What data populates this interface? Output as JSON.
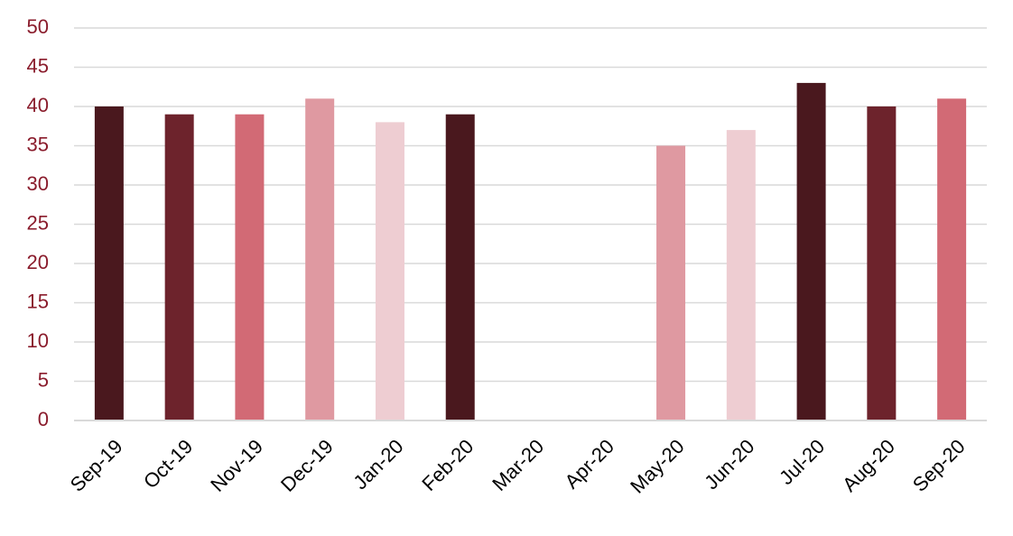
{
  "chart_data": {
    "type": "bar",
    "categories": [
      "Sep-19",
      "Oct-19",
      "Nov-19",
      "Dec-19",
      "Jan-20",
      "Feb-20",
      "Mar-20",
      "Apr-20",
      "May-20",
      "Jun-20",
      "Jul-20",
      "Aug-20",
      "Sep-20"
    ],
    "values": [
      40,
      39,
      39,
      41,
      38,
      39,
      null,
      null,
      35,
      37,
      43,
      40,
      41
    ],
    "colors": [
      "#4a181e",
      "#6d232c",
      "#d26a75",
      "#df99a1",
      "#eecdd2",
      "#4a181e",
      "#6d232c",
      "#d26a75",
      "#df99a1",
      "#eecdd2",
      "#4a181e",
      "#6d232c",
      "#d26a75"
    ],
    "ylim": [
      0,
      50
    ],
    "yticks": [
      0,
      5,
      10,
      15,
      20,
      25,
      30,
      35,
      40,
      45,
      50
    ],
    "grid": true
  }
}
